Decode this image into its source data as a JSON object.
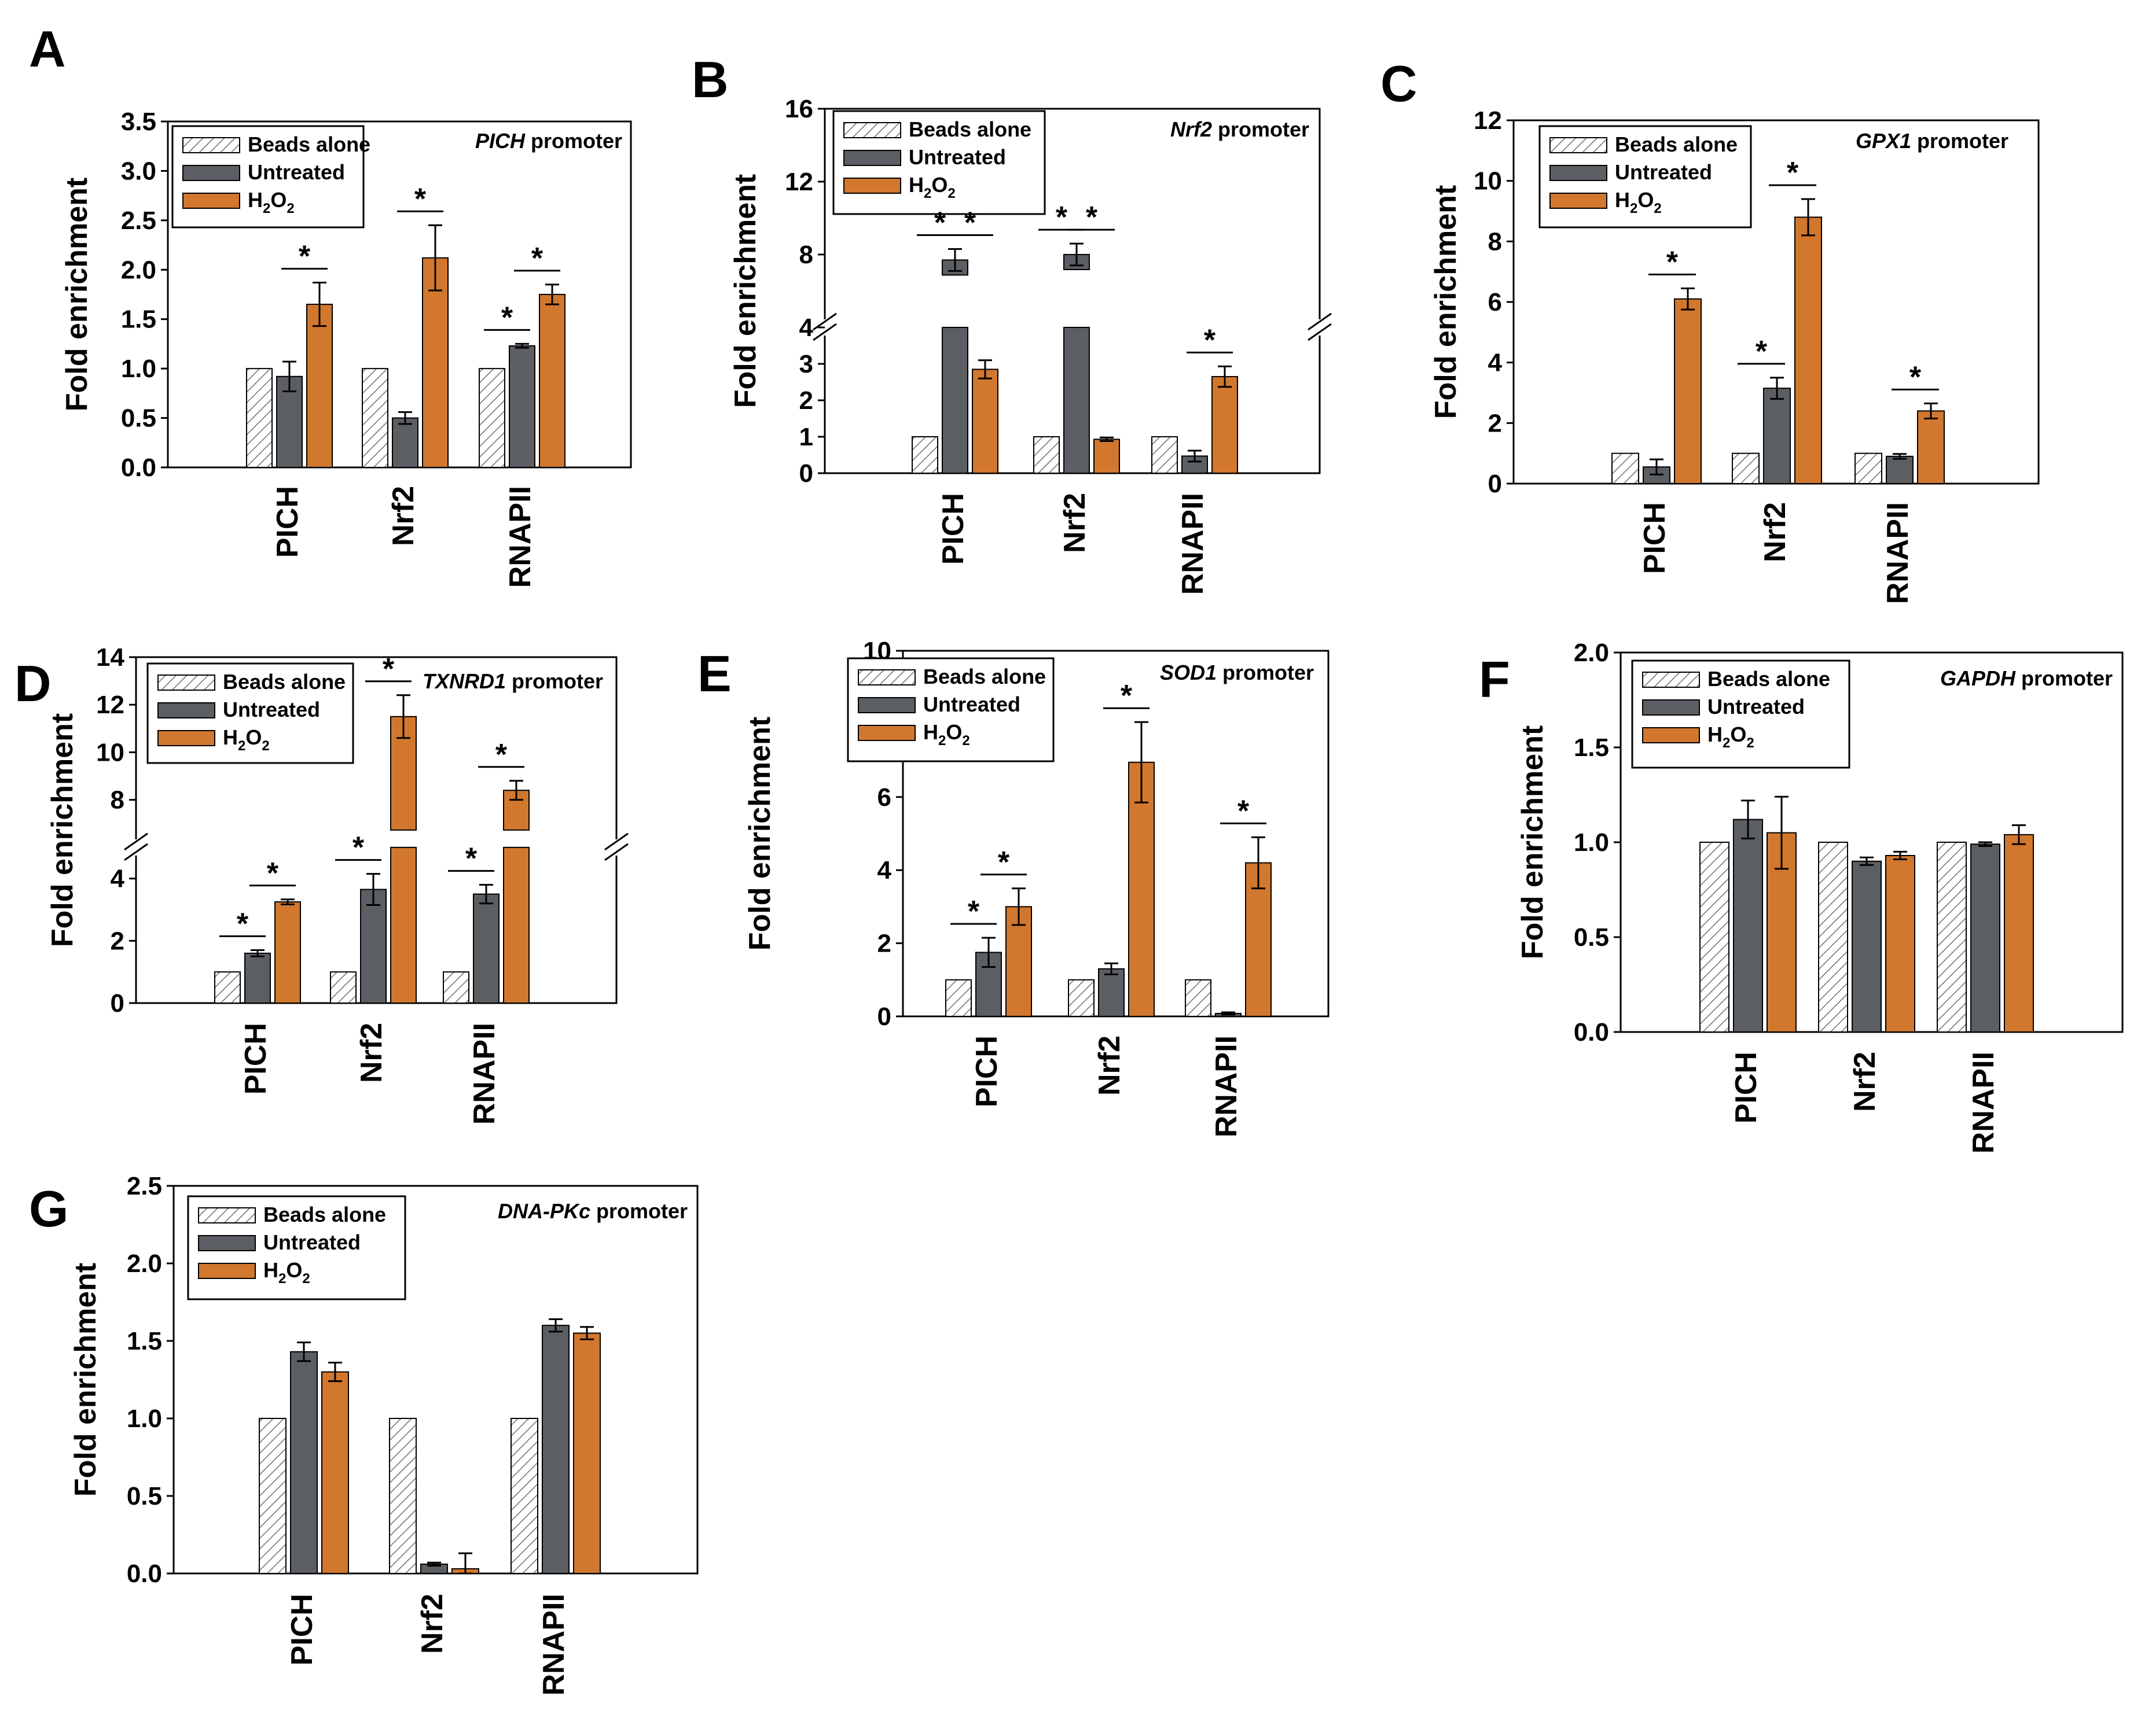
{
  "colors": {
    "beads": "#ffffff",
    "beads_hatch": "#7a7a7a",
    "untreated": "#5b5e63",
    "h2o2": "#d2772e",
    "axis": "#000000"
  },
  "chart_data": [
    {
      "panel": "A",
      "type": "bar",
      "title_italic": "PICH",
      "title_rest": " promoter",
      "ylabel": "Fold enrichment",
      "categories": [
        "PICH",
        "Nrf2",
        "RNAPII"
      ],
      "ylim": [
        0,
        3.5
      ],
      "yticks": [
        "0.0",
        "0.5",
        "1.0",
        "1.5",
        "2.0",
        "2.5",
        "3.0",
        "3.5"
      ],
      "legend": [
        "Beads alone",
        "Untreated",
        "H2O2"
      ],
      "series": [
        {
          "name": "Beads alone",
          "values": [
            1.0,
            1.0,
            1.0
          ],
          "errors": [
            0,
            0,
            0
          ]
        },
        {
          "name": "Untreated",
          "values": [
            0.92,
            0.5,
            1.23
          ],
          "errors": [
            0.15,
            0.06,
            0.02
          ]
        },
        {
          "name": "H2O2",
          "values": [
            1.65,
            2.12,
            1.75
          ],
          "errors": [
            0.22,
            0.33,
            0.1
          ]
        }
      ],
      "significance": [
        {
          "group": 0,
          "from": 1,
          "to": 2,
          "label": "*"
        },
        {
          "group": 1,
          "from": 1,
          "to": 2,
          "label": "*"
        },
        {
          "group": 2,
          "from": 0,
          "to": 1,
          "label": "*"
        },
        {
          "group": 2,
          "from": 1,
          "to": 2,
          "label": "*"
        }
      ]
    },
    {
      "panel": "B",
      "type": "bar",
      "title_italic": "Nrf2",
      "title_rest": " promoter",
      "ylabel": "Fold enrichment",
      "categories": [
        "PICH",
        "Nrf2",
        "RNAPII"
      ],
      "ylim": [
        0,
        16
      ],
      "axis_break": [
        4,
        6
      ],
      "yticks": [
        "0",
        "1",
        "2",
        "3",
        "4",
        "8",
        "12",
        "16"
      ],
      "legend": [
        "Beads alone",
        "Untreated",
        "H2O2"
      ],
      "series": [
        {
          "name": "Beads alone",
          "values": [
            1.0,
            1.0,
            1.0
          ],
          "errors": [
            0,
            0,
            0
          ]
        },
        {
          "name": "Untreated",
          "values": [
            7.7,
            8.0,
            0.47
          ],
          "errors": [
            0.6,
            0.6,
            0.15
          ]
        },
        {
          "name": "H2O2",
          "values": [
            2.85,
            0.93,
            2.65
          ],
          "errors": [
            0.25,
            0.05,
            0.28
          ]
        }
      ],
      "significance": [
        {
          "group": 0,
          "from": 0,
          "to": 1,
          "label": "*"
        },
        {
          "group": 0,
          "from": 1,
          "to": 2,
          "label": "*"
        },
        {
          "group": 1,
          "from": 0,
          "to": 1,
          "label": "*"
        },
        {
          "group": 1,
          "from": 1,
          "to": 2,
          "label": "*"
        },
        {
          "group": 2,
          "from": 1,
          "to": 2,
          "label": "*"
        }
      ]
    },
    {
      "panel": "C",
      "type": "bar",
      "title_italic": "GPX1",
      "title_rest": " promoter",
      "ylabel": "Fold enrichment",
      "categories": [
        "PICH",
        "Nrf2",
        "RNAPII"
      ],
      "ylim": [
        0,
        12
      ],
      "yticks": [
        "0",
        "2",
        "4",
        "6",
        "8",
        "10",
        "12"
      ],
      "legend": [
        "Beads alone",
        "Untreated",
        "H2O2"
      ],
      "series": [
        {
          "name": "Beads alone",
          "values": [
            1.0,
            1.0,
            1.0
          ],
          "errors": [
            0,
            0,
            0
          ]
        },
        {
          "name": "Untreated",
          "values": [
            0.55,
            3.15,
            0.9
          ],
          "errors": [
            0.25,
            0.35,
            0.08
          ]
        },
        {
          "name": "H2O2",
          "values": [
            6.1,
            8.8,
            2.4
          ],
          "errors": [
            0.35,
            0.6,
            0.25
          ]
        }
      ],
      "significance": [
        {
          "group": 0,
          "from": 1,
          "to": 2,
          "label": "*"
        },
        {
          "group": 1,
          "from": 0,
          "to": 1,
          "label": "*"
        },
        {
          "group": 1,
          "from": 1,
          "to": 2,
          "label": "*"
        },
        {
          "group": 2,
          "from": 1,
          "to": 2,
          "label": "*"
        }
      ]
    },
    {
      "panel": "D",
      "type": "bar",
      "title_italic": "TXNRD1",
      "title_rest": " promoter",
      "ylabel": "Fold enrichment",
      "categories": [
        "PICH",
        "Nrf2",
        "RNAPII"
      ],
      "ylim": [
        0,
        14
      ],
      "axis_break": [
        5,
        7
      ],
      "yticks": [
        "0",
        "2",
        "4",
        "8",
        "10",
        "12",
        "14"
      ],
      "legend": [
        "Beads alone",
        "Untreated",
        "H2O2"
      ],
      "series": [
        {
          "name": "Beads alone",
          "values": [
            1.0,
            1.0,
            1.0
          ],
          "errors": [
            0,
            0,
            0
          ]
        },
        {
          "name": "Untreated",
          "values": [
            1.6,
            3.65,
            3.5
          ],
          "errors": [
            0.1,
            0.5,
            0.3
          ]
        },
        {
          "name": "H2O2",
          "values": [
            3.25,
            11.5,
            8.4
          ],
          "errors": [
            0.08,
            0.9,
            0.4
          ]
        }
      ],
      "significance": [
        {
          "group": 0,
          "from": 0,
          "to": 1,
          "label": "*"
        },
        {
          "group": 0,
          "from": 1,
          "to": 2,
          "label": "*"
        },
        {
          "group": 1,
          "from": 0,
          "to": 1,
          "label": "*"
        },
        {
          "group": 1,
          "from": 1,
          "to": 2,
          "label": "*"
        },
        {
          "group": 2,
          "from": 0,
          "to": 1,
          "label": "*"
        },
        {
          "group": 2,
          "from": 1,
          "to": 2,
          "label": "*"
        }
      ]
    },
    {
      "panel": "E",
      "type": "bar",
      "title_italic": "SOD1",
      "title_rest": " promoter",
      "ylabel": "Fold enrichment",
      "categories": [
        "PICH",
        "Nrf2",
        "RNAPII"
      ],
      "ylim": [
        0,
        10
      ],
      "yticks": [
        "0",
        "2",
        "4",
        "6",
        "8",
        "10"
      ],
      "legend": [
        "Beads alone",
        "Untreated",
        "H2O2"
      ],
      "series": [
        {
          "name": "Beads alone",
          "values": [
            1.0,
            1.0,
            1.0
          ],
          "errors": [
            0,
            0,
            0
          ]
        },
        {
          "name": "Untreated",
          "values": [
            1.75,
            1.3,
            0.08
          ],
          "errors": [
            0.4,
            0.15,
            0.03
          ]
        },
        {
          "name": "H2O2",
          "values": [
            3.0,
            6.95,
            4.2
          ],
          "errors": [
            0.5,
            1.1,
            0.7
          ]
        }
      ],
      "significance": [
        {
          "group": 0,
          "from": 0,
          "to": 1,
          "label": "*"
        },
        {
          "group": 0,
          "from": 1,
          "to": 2,
          "label": "*"
        },
        {
          "group": 1,
          "from": 1,
          "to": 2,
          "label": "*"
        },
        {
          "group": 2,
          "from": 1,
          "to": 2,
          "label": "*"
        }
      ]
    },
    {
      "panel": "F",
      "type": "bar",
      "title_italic": "GAPDH",
      "title_rest": " promoter",
      "ylabel": "Fold enrichment",
      "categories": [
        "PICH",
        "Nrf2",
        "RNAPII"
      ],
      "ylim": [
        0,
        2.0
      ],
      "yticks": [
        "0.0",
        "0.5",
        "1.0",
        "1.5",
        "2.0"
      ],
      "legend": [
        "Beads alone",
        "Untreated",
        "H2O2"
      ],
      "series": [
        {
          "name": "Beads alone",
          "values": [
            1.0,
            1.0,
            1.0
          ],
          "errors": [
            0,
            0,
            0
          ]
        },
        {
          "name": "Untreated",
          "values": [
            1.12,
            0.9,
            0.99
          ],
          "errors": [
            0.1,
            0.02,
            0.01
          ]
        },
        {
          "name": "H2O2",
          "values": [
            1.05,
            0.93,
            1.04
          ],
          "errors": [
            0.19,
            0.02,
            0.05
          ]
        }
      ],
      "significance": []
    },
    {
      "panel": "G",
      "type": "bar",
      "title_italic": "DNA-PKc",
      "title_rest": " promoter",
      "ylabel": "Fold enrichment",
      "categories": [
        "PICH",
        "Nrf2",
        "RNAPII"
      ],
      "ylim": [
        0,
        2.5
      ],
      "yticks": [
        "0.0",
        "0.5",
        "1.0",
        "1.5",
        "2.0",
        "2.5"
      ],
      "legend": [
        "Beads alone",
        "Untreated",
        "H2O2"
      ],
      "series": [
        {
          "name": "Beads alone",
          "values": [
            1.0,
            1.0,
            1.0
          ],
          "errors": [
            0,
            0,
            0
          ]
        },
        {
          "name": "Untreated",
          "values": [
            1.43,
            0.06,
            1.6
          ],
          "errors": [
            0.06,
            0.01,
            0.04
          ]
        },
        {
          "name": "H2O2",
          "values": [
            1.3,
            0.03,
            1.55
          ],
          "errors": [
            0.06,
            0.1,
            0.04
          ]
        }
      ],
      "significance": []
    }
  ]
}
